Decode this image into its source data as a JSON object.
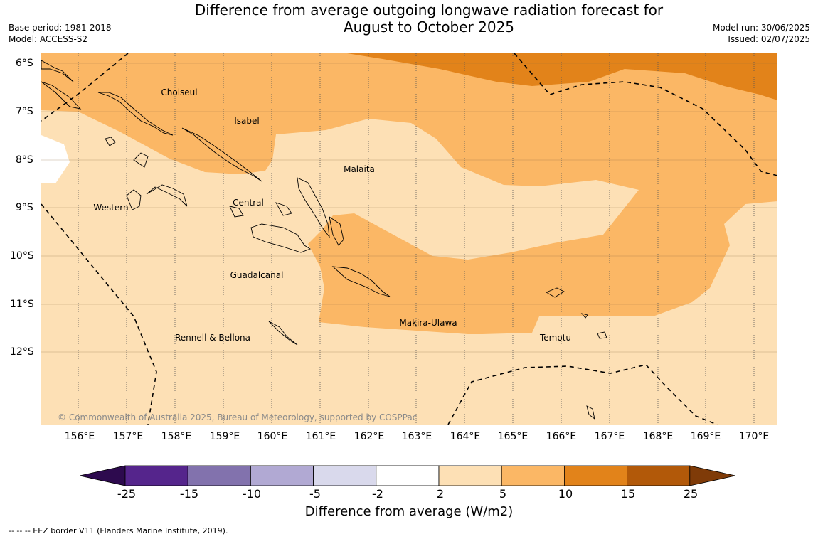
{
  "title_line1": "Difference from average outgoing longwave radiation forecast for",
  "title_line2": "August to October 2025",
  "base_period": "Base period: 1981-2018",
  "model": "Model: ACCESS-S2",
  "model_run": "Model run: 30/06/2025",
  "issued": "Issued: 02/07/2025",
  "lon_labels": [
    "156°E",
    "157°E",
    "158°E",
    "159°E",
    "160°E",
    "161°E",
    "162°E",
    "163°E",
    "164°E",
    "165°E",
    "166°E",
    "167°E",
    "168°E",
    "169°E",
    "170°E"
  ],
  "lat_labels": [
    "6°S",
    "7°S",
    "8°S",
    "9°S",
    "10°S",
    "11°S",
    "12°S"
  ],
  "regions": [
    "Choiseul",
    "Isabel",
    "Malaita",
    "Western",
    "Central",
    "Guadalcanal",
    "Makira-Ulawa",
    "Temotu",
    "Rennell & Bellona"
  ],
  "copyright": "© Commonwealth of Australia 2025, Bureau of Meteorology, supported by COSPPac",
  "colorbar": {
    "ticks": [
      "-25",
      "-15",
      "-10",
      "-5",
      "-2",
      "2",
      "5",
      "10",
      "15",
      "25"
    ],
    "colors": [
      "#2d0a4e",
      "#55258c",
      "#8272ad",
      "#b1a9d3",
      "#d9d9ec",
      "#ffffff",
      "#fde0b5",
      "#fbb765",
      "#e2831a",
      "#b25909",
      "#7f3b08"
    ],
    "label": "Difference from average (W/m2)"
  },
  "footnote": "--  --  -- EEZ border V11 (Flanders Marine Institute, 2019)."
}
